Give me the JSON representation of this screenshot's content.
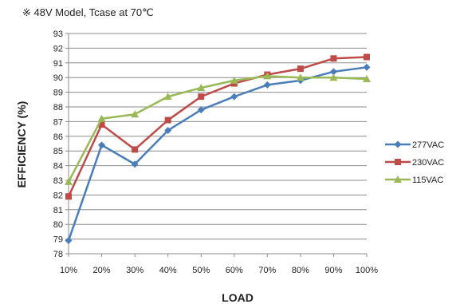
{
  "chart_data": {
    "type": "line",
    "subtitle": "※ 48V Model, Tcase at 70℃",
    "xlabel": "LOAD",
    "ylabel": "EFFICIENCY (%)",
    "categories": [
      "10%",
      "20%",
      "30%",
      "40%",
      "50%",
      "60%",
      "70%",
      "80%",
      "90%",
      "100%"
    ],
    "ylim": [
      78,
      93
    ],
    "yticks": [
      78,
      79,
      80,
      81,
      82,
      83,
      84,
      85,
      86,
      87,
      88,
      89,
      90,
      91,
      92,
      93
    ],
    "grid": true,
    "legend_position": "right",
    "series": [
      {
        "name": "277VAC",
        "color": "#4a7ebb",
        "marker": "diamond",
        "values": [
          78.9,
          85.4,
          84.1,
          86.4,
          87.8,
          88.7,
          89.5,
          89.8,
          90.4,
          90.7
        ]
      },
      {
        "name": "230VAC",
        "color": "#be4b48",
        "marker": "square",
        "values": [
          81.9,
          86.8,
          85.1,
          87.1,
          88.7,
          89.6,
          90.2,
          90.6,
          91.3,
          91.4
        ]
      },
      {
        "name": "115VAC",
        "color": "#98b954",
        "marker": "triangle",
        "values": [
          82.9,
          87.2,
          87.5,
          88.7,
          89.3,
          89.8,
          90.1,
          90.0,
          90.0,
          89.9
        ]
      }
    ]
  }
}
